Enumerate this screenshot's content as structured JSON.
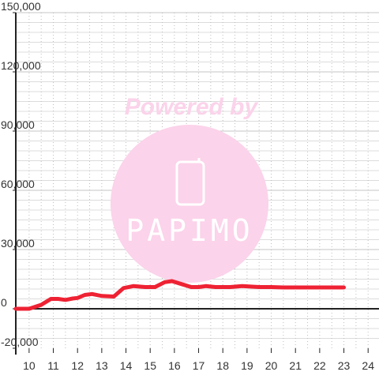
{
  "watermark": {
    "powered_by": "Powered by",
    "brand": "PAPIMO",
    "brand_color": "#fbd3ea"
  },
  "chart_data": {
    "type": "line",
    "x_ticks": [
      "10",
      "11",
      "12",
      "13",
      "14",
      "15",
      "16",
      "17",
      "18",
      "19",
      "20",
      "21",
      "22",
      "23",
      "24"
    ],
    "y_ticks": [
      "150,000",
      "120,000",
      "90,000",
      "60,000",
      "30,000",
      "0",
      "-20,000"
    ],
    "xlim": [
      9.45,
      24.45
    ],
    "ylim": [
      -20000,
      150000
    ],
    "grid": true,
    "series": [
      {
        "color": "#ee2233",
        "points": [
          [
            9.45,
            0
          ],
          [
            10.0,
            0
          ],
          [
            10.5,
            2000
          ],
          [
            10.9,
            5000
          ],
          [
            11.2,
            5000
          ],
          [
            11.5,
            4500
          ],
          [
            11.8,
            5200
          ],
          [
            12.0,
            5500
          ],
          [
            12.3,
            7000
          ],
          [
            12.6,
            7500
          ],
          [
            13.0,
            6500
          ],
          [
            13.5,
            6200
          ],
          [
            13.9,
            10500
          ],
          [
            14.3,
            11500
          ],
          [
            14.8,
            11000
          ],
          [
            15.2,
            11000
          ],
          [
            15.6,
            13500
          ],
          [
            15.9,
            14000
          ],
          [
            16.3,
            12500
          ],
          [
            16.7,
            11000
          ],
          [
            17.0,
            11000
          ],
          [
            17.3,
            11500
          ],
          [
            17.7,
            11000
          ],
          [
            18.3,
            11000
          ],
          [
            18.8,
            11500
          ],
          [
            19.5,
            11000
          ],
          [
            20.0,
            11000
          ],
          [
            20.5,
            10800
          ],
          [
            21.5,
            10800
          ],
          [
            22.5,
            10800
          ],
          [
            23.0,
            10800
          ]
        ]
      }
    ]
  }
}
